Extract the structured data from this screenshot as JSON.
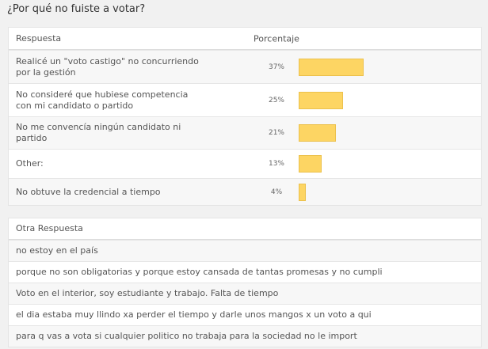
{
  "title": "¿Por qué no fuiste a votar?",
  "results": {
    "headers": {
      "answer": "Respuesta",
      "percent": "Porcentaje"
    },
    "bar_color": "#fdd563",
    "rows": [
      {
        "answer": "Realicé un \"voto castigo\" no concurriendo por la gestión",
        "percent_label": "37%",
        "value": 37
      },
      {
        "answer": "No consideré que hubiese competencia con mi candidato o partido",
        "percent_label": "25%",
        "value": 25
      },
      {
        "answer": "No me convencía ningún candidato ni partido",
        "percent_label": "21%",
        "value": 21
      },
      {
        "answer": "Other:",
        "percent_label": "13%",
        "value": 13
      },
      {
        "answer": "No obtuve la credencial a tiempo",
        "percent_label": "4%",
        "value": 4
      }
    ]
  },
  "other": {
    "header": "Otra Respuesta",
    "rows": [
      "no estoy en el país",
      "porque no son obligatorias y porque estoy cansada de tantas promesas y no cumpli",
      "Voto en el interior, soy estudiante y trabajo. Falta de tiempo",
      "el dia estaba muy llindo xa perder el tiempo y darle unos mangos x un voto a qui",
      "para q vas a vota si cualquier politico no trabaja para la sociedad no le import"
    ]
  }
}
